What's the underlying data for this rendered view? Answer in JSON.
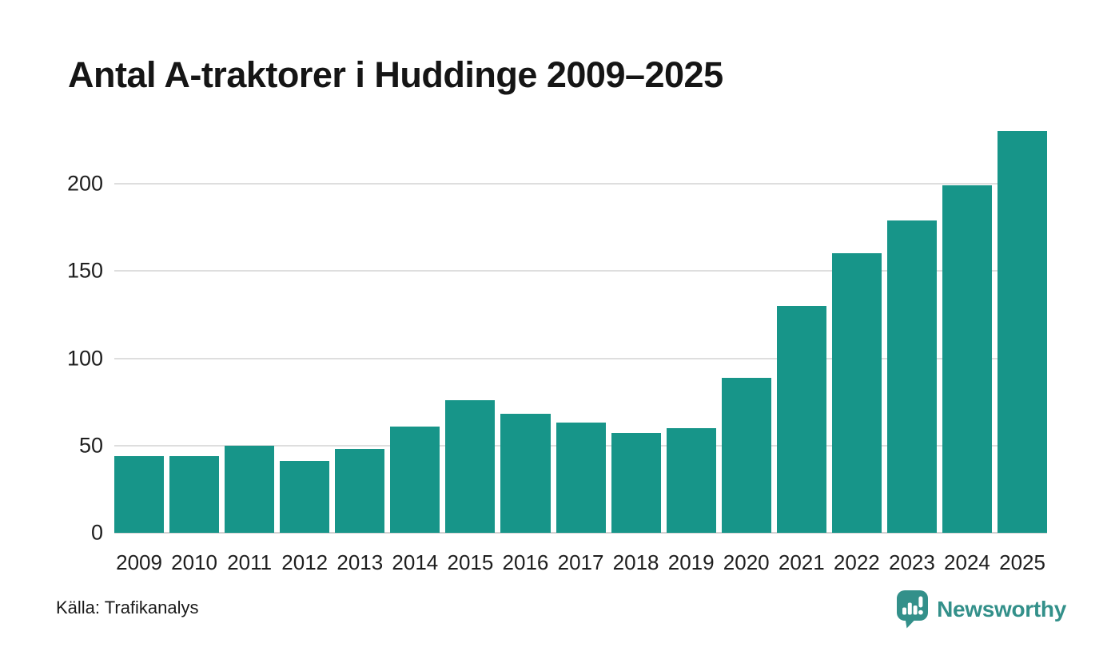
{
  "page": {
    "source_label": "Källa: Trafikanalys",
    "brand": {
      "name": "Newsworthy",
      "color": "#33908a"
    },
    "colors": {
      "bar": "#179589",
      "grid": "#dedede",
      "title_text": "#151515",
      "axis_text": "#1e1e1e"
    }
  },
  "chart_data": {
    "type": "bar",
    "title": "Antal A-traktorer i Huddinge 2009–2025",
    "categories": [
      "2009",
      "2010",
      "2011",
      "2012",
      "2013",
      "2014",
      "2015",
      "2016",
      "2017",
      "2018",
      "2019",
      "2020",
      "2021",
      "2022",
      "2023",
      "2024",
      "2025"
    ],
    "values": [
      44,
      44,
      50,
      41,
      48,
      61,
      76,
      68,
      63,
      57,
      60,
      89,
      130,
      160,
      179,
      199,
      230
    ],
    "xlabel": "",
    "ylabel": "",
    "yticks": [
      0,
      50,
      100,
      150,
      200
    ],
    "ylim": [
      0,
      238
    ],
    "grid": true,
    "legend": "none",
    "bar_color": "#179589",
    "source": "Källa: Trafikanalys"
  }
}
